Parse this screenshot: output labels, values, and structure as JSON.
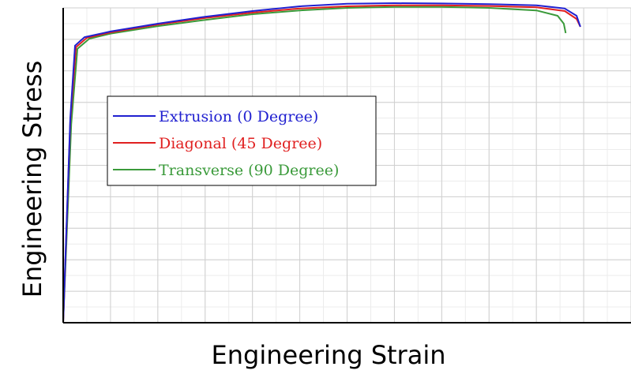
{
  "chart_data": {
    "type": "line",
    "title": "",
    "xlabel": "Engineering Strain",
    "ylabel": "Engineering Stress",
    "xlim": [
      0,
      12
    ],
    "ylim": [
      0,
      10
    ],
    "grid": true,
    "grid_major_x": 1,
    "grid_minor_x": 0.5,
    "grid_major_y": 1,
    "grid_minor_y": 0.5,
    "legend_position": "left-middle",
    "series": [
      {
        "name": "Extrusion (0 Degree)",
        "color": "#2020d0",
        "points": [
          [
            0,
            0
          ],
          [
            0.15,
            6.5
          ],
          [
            0.25,
            8.8
          ],
          [
            0.45,
            9.07
          ],
          [
            1.0,
            9.25
          ],
          [
            2.0,
            9.5
          ],
          [
            3.0,
            9.72
          ],
          [
            4.0,
            9.9
          ],
          [
            5.0,
            10.05
          ],
          [
            6.0,
            10.13
          ],
          [
            7.0,
            10.15
          ],
          [
            8.0,
            10.14
          ],
          [
            9.0,
            10.12
          ],
          [
            10.0,
            10.08
          ],
          [
            10.6,
            9.98
          ],
          [
            10.85,
            9.75
          ],
          [
            10.93,
            9.4
          ]
        ]
      },
      {
        "name": "Diagonal (45 Degree)",
        "color": "#e02020",
        "points": [
          [
            0,
            0
          ],
          [
            0.15,
            6.4
          ],
          [
            0.27,
            8.75
          ],
          [
            0.5,
            9.05
          ],
          [
            1.0,
            9.22
          ],
          [
            2.0,
            9.47
          ],
          [
            3.0,
            9.68
          ],
          [
            4.0,
            9.85
          ],
          [
            5.0,
            9.98
          ],
          [
            6.0,
            10.05
          ],
          [
            7.0,
            10.08
          ],
          [
            8.0,
            10.08
          ],
          [
            9.0,
            10.06
          ],
          [
            10.0,
            10.02
          ],
          [
            10.6,
            9.9
          ],
          [
            10.85,
            9.65
          ],
          [
            10.93,
            9.4
          ]
        ]
      },
      {
        "name": "Transverse (90 Degree)",
        "color": "#3a9a3a",
        "points": [
          [
            0,
            0
          ],
          [
            0.17,
            6.3
          ],
          [
            0.3,
            8.7
          ],
          [
            0.55,
            9.02
          ],
          [
            1.0,
            9.18
          ],
          [
            2.0,
            9.42
          ],
          [
            3.0,
            9.62
          ],
          [
            4.0,
            9.8
          ],
          [
            5.0,
            9.92
          ],
          [
            6.0,
            10.0
          ],
          [
            7.0,
            10.03
          ],
          [
            8.0,
            10.03
          ],
          [
            9.0,
            10.0
          ],
          [
            10.0,
            9.92
          ],
          [
            10.45,
            9.75
          ],
          [
            10.58,
            9.5
          ],
          [
            10.62,
            9.2
          ]
        ]
      }
    ]
  }
}
